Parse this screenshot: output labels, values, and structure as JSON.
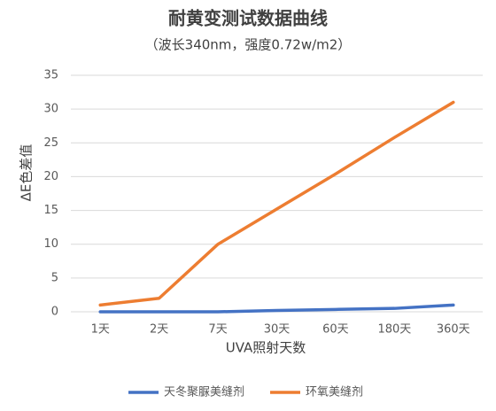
{
  "chart_data": {
    "type": "line",
    "title": "耐黄变测试数据曲线",
    "subtitle": "（波长340nm，强度0.72w/m2）",
    "x_label": "UVA照射天数",
    "y_label": "ΔE色差值",
    "categories": [
      "1天",
      "2天",
      "7天",
      "30天",
      "60天",
      "180天",
      "360天"
    ],
    "series": [
      {
        "name": "天冬聚脲美缝剂",
        "color": "#4472c4",
        "values": [
          0,
          0,
          0,
          0.2,
          0.35,
          0.5,
          1.0
        ]
      },
      {
        "name": "环氧美缝剂",
        "color": "#ed7d31",
        "values": [
          1,
          2,
          10,
          15.2,
          20.4,
          25.8,
          31
        ]
      }
    ],
    "ylim": [
      0,
      35
    ],
    "yticks": [
      0,
      5,
      10,
      15,
      20,
      25,
      30,
      35
    ],
    "grid": true,
    "legend": "bottom"
  }
}
